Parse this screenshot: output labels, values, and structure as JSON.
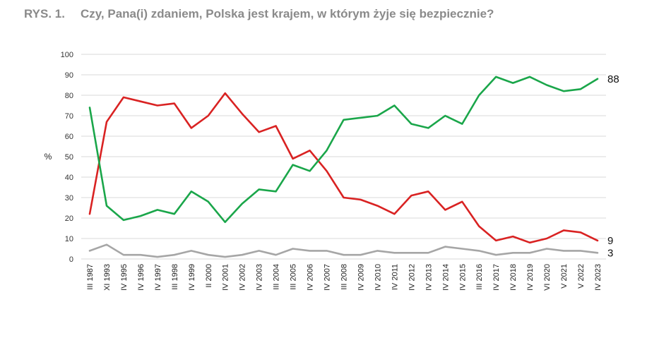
{
  "figure": {
    "number": "RYS. 1.",
    "question": "Czy, Pana(i) zdaniem, Polska jest krajem, w którym żyje się bezpiecznie?"
  },
  "chart_data": {
    "type": "line",
    "ylabel": "%",
    "ylim": [
      0,
      100
    ],
    "yticks": [
      0,
      10,
      20,
      30,
      40,
      50,
      60,
      70,
      80,
      90,
      100
    ],
    "grid": true,
    "categories": [
      "III 1987",
      "XI 1993",
      "IV 1995",
      "IV 1996",
      "IV 1997",
      "III 1998",
      "IV 1999",
      "II 2000",
      "IV 2001",
      "IV 2002",
      "IV 2003",
      "III 2004",
      "III 2005",
      "IV 2006",
      "IV 2007",
      "III 2008",
      "IV 2009",
      "IV 2010",
      "IV 2011",
      "IV 2012",
      "IV 2013",
      "IV 2014",
      "IV 2015",
      "III 2016",
      "IV 2017",
      "IV 2018",
      "IV 2019",
      "VI 2020",
      "V 2021",
      "V 2022",
      "IV 2023"
    ],
    "series": [
      {
        "color": "#1aa64a",
        "end_label": "88",
        "values": [
          74,
          26,
          19,
          21,
          24,
          22,
          33,
          28,
          18,
          27,
          34,
          33,
          46,
          43,
          53,
          68,
          69,
          70,
          75,
          66,
          64,
          70,
          66,
          80,
          89,
          86,
          89,
          85,
          82,
          83,
          88
        ]
      },
      {
        "color": "#d92222",
        "end_label": "9",
        "values": [
          22,
          67,
          79,
          77,
          75,
          76,
          64,
          70,
          81,
          71,
          62,
          65,
          49,
          53,
          43,
          30,
          29,
          26,
          22,
          31,
          33,
          24,
          28,
          16,
          9,
          11,
          8,
          10,
          14,
          13,
          9
        ]
      },
      {
        "color": "#a6a6a6",
        "end_label": "3",
        "values": [
          4,
          7,
          2,
          2,
          1,
          2,
          4,
          2,
          1,
          2,
          4,
          2,
          5,
          4,
          4,
          2,
          2,
          4,
          3,
          3,
          3,
          6,
          5,
          4,
          2,
          3,
          3,
          5,
          4,
          4,
          3
        ]
      }
    ]
  }
}
